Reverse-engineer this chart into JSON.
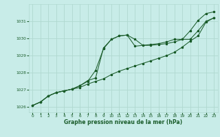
{
  "xlabel": "Graphe pression niveau de la mer (hPa)",
  "bg_color": "#c8ece8",
  "grid_color": "#b0d8d0",
  "line_color": "#1a5c2a",
  "xmin": -0.5,
  "xmax": 23.5,
  "ymin": 1025.7,
  "ymax": 1032.0,
  "yticks": [
    1026,
    1027,
    1028,
    1029,
    1030,
    1031
  ],
  "xticks": [
    0,
    1,
    2,
    3,
    4,
    5,
    6,
    7,
    8,
    9,
    10,
    11,
    12,
    13,
    14,
    15,
    16,
    17,
    18,
    19,
    20,
    21,
    22,
    23
  ],
  "line1_x": [
    0,
    1,
    2,
    3,
    4,
    5,
    6,
    7,
    8,
    9,
    10,
    11,
    12,
    13,
    14,
    15,
    16,
    17,
    18,
    19,
    20,
    21,
    22,
    23
  ],
  "line1_y": [
    1026.1,
    1026.3,
    1026.65,
    1026.85,
    1026.95,
    1027.05,
    1027.15,
    1027.35,
    1027.5,
    1027.65,
    1027.9,
    1028.1,
    1028.25,
    1028.4,
    1028.55,
    1028.7,
    1028.85,
    1029.0,
    1029.2,
    1029.5,
    1029.85,
    1030.15,
    1030.95,
    1031.2
  ],
  "line2_x": [
    0,
    1,
    2,
    3,
    4,
    5,
    6,
    7,
    8,
    9,
    10,
    11,
    12,
    13,
    14,
    15,
    16,
    17,
    18,
    19,
    20,
    21,
    22,
    23
  ],
  "line2_y": [
    1026.1,
    1026.3,
    1026.65,
    1026.85,
    1026.95,
    1027.05,
    1027.25,
    1027.5,
    1028.15,
    1029.4,
    1029.95,
    1030.15,
    1030.2,
    1029.95,
    1029.6,
    1029.6,
    1029.65,
    1029.7,
    1029.8,
    1029.95,
    1029.95,
    1030.45,
    1031.0,
    1031.2
  ],
  "line3_x": [
    0,
    1,
    2,
    3,
    4,
    5,
    6,
    7,
    8,
    9,
    10,
    11,
    12,
    13,
    14,
    15,
    16,
    17,
    18,
    19,
    20,
    21,
    22,
    23
  ],
  "line3_y": [
    1026.1,
    1026.3,
    1026.65,
    1026.85,
    1026.95,
    1027.05,
    1027.25,
    1027.55,
    1027.7,
    1029.45,
    1029.95,
    1030.15,
    1030.2,
    1029.55,
    1029.6,
    1029.65,
    1029.7,
    1029.8,
    1029.95,
    1029.95,
    1030.45,
    1031.05,
    1031.45,
    1031.55
  ]
}
